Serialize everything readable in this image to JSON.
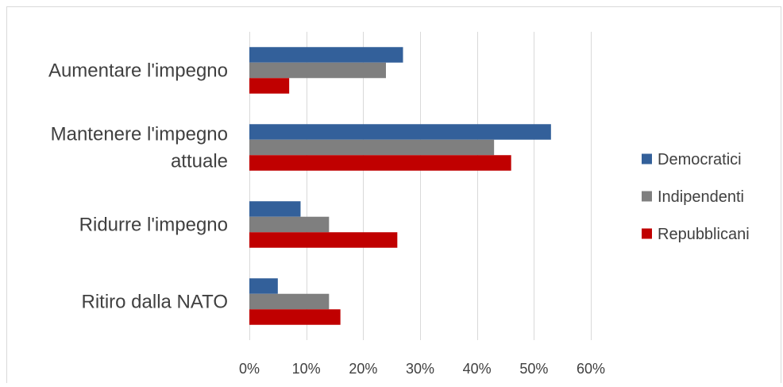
{
  "chart_data": {
    "type": "bar",
    "orientation": "horizontal",
    "categories": [
      "Aumentare l'impegno",
      "Mantenere l'impegno attuale",
      "Ridurre l'impegno",
      "Ritiro dalla NATO"
    ],
    "category_lines": [
      [
        "Aumentare l'impegno"
      ],
      [
        "Mantenere l'impegno",
        "attuale"
      ],
      [
        "Ridurre l'impegno"
      ],
      [
        "Ritiro dalla NATO"
      ]
    ],
    "series": [
      {
        "name": "Democratici",
        "color": "#33609A",
        "values": [
          27,
          53,
          9,
          5
        ]
      },
      {
        "name": "Indipendenti",
        "color": "#7F7F7F",
        "values": [
          24,
          43,
          14,
          14
        ]
      },
      {
        "name": "Repubblicani",
        "color": "#C00000",
        "values": [
          7,
          46,
          26,
          16
        ]
      }
    ],
    "xlim": [
      0,
      60
    ],
    "xticks": [
      0,
      10,
      20,
      30,
      40,
      50,
      60
    ],
    "xtick_labels": [
      "0%",
      "10%",
      "20%",
      "30%",
      "40%",
      "50%",
      "60%"
    ],
    "grid": true,
    "legend_position": "right",
    "title": "",
    "xlabel": "",
    "ylabel": ""
  }
}
